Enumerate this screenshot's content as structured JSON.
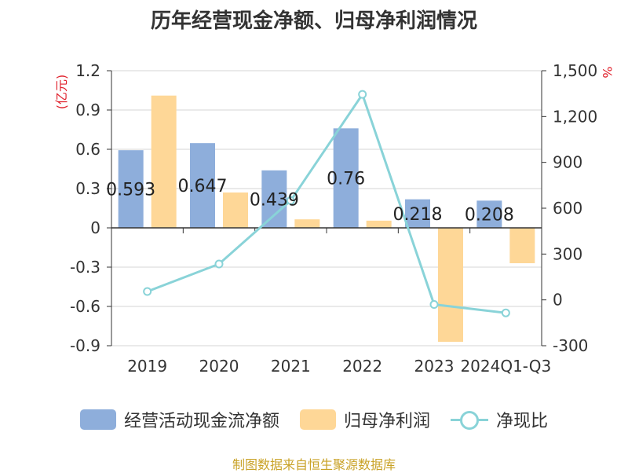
{
  "title": "历年经营现金净额、归母净利润情况",
  "source": "制图数据来自恒生聚源数据库",
  "chart_data": {
    "type": "bar",
    "categories": [
      "2019",
      "2020",
      "2021",
      "2022",
      "2023",
      "2024Q1-Q3"
    ],
    "left_axis": {
      "unit": "(亿元)",
      "ylim": [
        -0.9,
        1.2
      ],
      "ticks": [
        1.2,
        0.9,
        0.6,
        0.3,
        0,
        -0.3,
        -0.6,
        -0.9
      ],
      "tick_labels": [
        "1.2",
        "0.9",
        "0.6",
        "0.3",
        "0",
        "-0.3",
        "-0.6",
        "-0.9"
      ]
    },
    "right_axis": {
      "unit": "%",
      "ylim": [
        -300,
        1500
      ],
      "ticks": [
        1500,
        1200,
        900,
        600,
        300,
        0,
        -300
      ],
      "tick_labels": [
        "1,500",
        "1,200",
        "900",
        "600",
        "300",
        "0",
        "-300"
      ]
    },
    "series": [
      {
        "name": "经营活动现金流净额",
        "type": "bar",
        "axis": "left",
        "color": "#8eaedb",
        "values": [
          0.593,
          0.647,
          0.439,
          0.76,
          0.218,
          0.208
        ],
        "labels": [
          "0.593",
          "0.647",
          "0.439",
          "0.76",
          "0.218",
          "0.208"
        ]
      },
      {
        "name": "归母净利润",
        "type": "bar",
        "axis": "left",
        "color": "#fed797",
        "values": [
          1.01,
          0.27,
          0.065,
          0.055,
          -0.87,
          -0.27
        ]
      },
      {
        "name": "净现比",
        "type": "line",
        "axis": "right",
        "color": "#89d3d8",
        "values": [
          55,
          235,
          650,
          1345,
          -30,
          -85
        ]
      }
    ],
    "grid": true,
    "legend_position": "bottom"
  }
}
